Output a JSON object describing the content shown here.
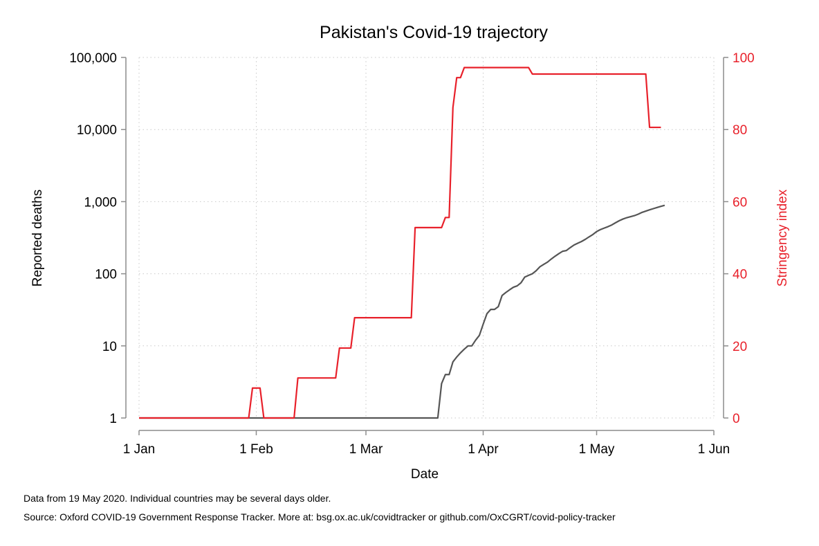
{
  "chart_data": {
    "type": "line",
    "title": "Pakistan's Covid-19 trajectory",
    "xlabel": "Date",
    "ylabel_left": "Reported deaths",
    "ylabel_right": "Stringency index",
    "x_range": [
      "2020-01-01",
      "2020-06-01"
    ],
    "x_ticks": [
      {
        "date": "2020-01-01",
        "label": "1 Jan"
      },
      {
        "date": "2020-02-01",
        "label": "1 Feb"
      },
      {
        "date": "2020-03-01",
        "label": "1 Mar"
      },
      {
        "date": "2020-04-01",
        "label": "1 Apr"
      },
      {
        "date": "2020-05-01",
        "label": "1 May"
      },
      {
        "date": "2020-06-01",
        "label": "1 Jun"
      }
    ],
    "y_left": {
      "scale": "log",
      "range": [
        1,
        100000
      ],
      "ticks": [
        {
          "value": 1,
          "label": "1"
        },
        {
          "value": 10,
          "label": "10"
        },
        {
          "value": 100,
          "label": "100"
        },
        {
          "value": 1000,
          "label": "1,000"
        },
        {
          "value": 10000,
          "label": "10,000"
        },
        {
          "value": 100000,
          "label": "100,000"
        }
      ]
    },
    "y_right": {
      "scale": "linear",
      "range": [
        0,
        100
      ],
      "ticks": [
        {
          "value": 0,
          "label": "0"
        },
        {
          "value": 20,
          "label": "20"
        },
        {
          "value": 40,
          "label": "40"
        },
        {
          "value": 60,
          "label": "60"
        },
        {
          "value": 80,
          "label": "80"
        },
        {
          "value": 100,
          "label": "100"
        }
      ]
    },
    "grid": true,
    "legend": "none",
    "series": [
      {
        "axis": "left",
        "color": "#555555",
        "points": [
          [
            "2020-01-01",
            1
          ],
          [
            "2020-03-20",
            1
          ],
          [
            "2020-03-21",
            3
          ],
          [
            "2020-03-22",
            4
          ],
          [
            "2020-03-23",
            4
          ],
          [
            "2020-03-24",
            6
          ],
          [
            "2020-03-25",
            7
          ],
          [
            "2020-03-26",
            8
          ],
          [
            "2020-03-27",
            9
          ],
          [
            "2020-03-28",
            10
          ],
          [
            "2020-03-29",
            10
          ],
          [
            "2020-03-30",
            12
          ],
          [
            "2020-03-31",
            14
          ],
          [
            "2020-04-01",
            20
          ],
          [
            "2020-04-02",
            28
          ],
          [
            "2020-04-03",
            32
          ],
          [
            "2020-04-04",
            32
          ],
          [
            "2020-04-05",
            35
          ],
          [
            "2020-04-06",
            50
          ],
          [
            "2020-04-07",
            55
          ],
          [
            "2020-04-08",
            60
          ],
          [
            "2020-04-09",
            65
          ],
          [
            "2020-04-10",
            68
          ],
          [
            "2020-04-11",
            75
          ],
          [
            "2020-04-12",
            90
          ],
          [
            "2020-04-13",
            95
          ],
          [
            "2020-04-14",
            100
          ],
          [
            "2020-04-15",
            110
          ],
          [
            "2020-04-16",
            125
          ],
          [
            "2020-04-17",
            135
          ],
          [
            "2020-04-18",
            145
          ],
          [
            "2020-04-19",
            160
          ],
          [
            "2020-04-20",
            175
          ],
          [
            "2020-04-21",
            190
          ],
          [
            "2020-04-22",
            205
          ],
          [
            "2020-04-23",
            210
          ],
          [
            "2020-04-24",
            230
          ],
          [
            "2020-04-25",
            250
          ],
          [
            "2020-04-26",
            265
          ],
          [
            "2020-04-27",
            280
          ],
          [
            "2020-04-28",
            300
          ],
          [
            "2020-04-29",
            325
          ],
          [
            "2020-04-30",
            350
          ],
          [
            "2020-05-01",
            385
          ],
          [
            "2020-05-02",
            410
          ],
          [
            "2020-05-03",
            430
          ],
          [
            "2020-05-04",
            450
          ],
          [
            "2020-05-05",
            475
          ],
          [
            "2020-05-06",
            510
          ],
          [
            "2020-05-07",
            545
          ],
          [
            "2020-05-08",
            575
          ],
          [
            "2020-05-09",
            600
          ],
          [
            "2020-05-10",
            620
          ],
          [
            "2020-05-11",
            640
          ],
          [
            "2020-05-12",
            670
          ],
          [
            "2020-05-13",
            710
          ],
          [
            "2020-05-14",
            740
          ],
          [
            "2020-05-15",
            770
          ],
          [
            "2020-05-16",
            800
          ],
          [
            "2020-05-17",
            830
          ],
          [
            "2020-05-18",
            860
          ],
          [
            "2020-05-19",
            890
          ]
        ]
      },
      {
        "axis": "right",
        "color": "#e8202a",
        "points": [
          [
            "2020-01-01",
            0
          ],
          [
            "2020-01-30",
            0
          ],
          [
            "2020-01-31",
            8.3
          ],
          [
            "2020-02-02",
            8.3
          ],
          [
            "2020-02-03",
            0
          ],
          [
            "2020-02-11",
            0
          ],
          [
            "2020-02-12",
            11.1
          ],
          [
            "2020-02-22",
            11.1
          ],
          [
            "2020-02-23",
            19.4
          ],
          [
            "2020-02-26",
            19.4
          ],
          [
            "2020-02-27",
            27.8
          ],
          [
            "2020-03-13",
            27.8
          ],
          [
            "2020-03-14",
            52.8
          ],
          [
            "2020-03-21",
            52.8
          ],
          [
            "2020-03-22",
            55.6
          ],
          [
            "2020-03-23",
            55.6
          ],
          [
            "2020-03-24",
            86.1
          ],
          [
            "2020-03-25",
            94.4
          ],
          [
            "2020-03-26",
            94.4
          ],
          [
            "2020-03-27",
            97.2
          ],
          [
            "2020-04-13",
            97.2
          ],
          [
            "2020-04-14",
            95.4
          ],
          [
            "2020-05-14",
            95.4
          ],
          [
            "2020-05-15",
            80.6
          ],
          [
            "2020-05-18",
            80.6
          ]
        ]
      }
    ]
  },
  "footnotes": {
    "line1": "Data from 19 May 2020. Individual countries may be several days older.",
    "line2": "Source: Oxford COVID-19 Government Response Tracker. More at: bsg.ox.ac.uk/covidtracker or github.com/OxCGRT/covid-policy-tracker"
  }
}
